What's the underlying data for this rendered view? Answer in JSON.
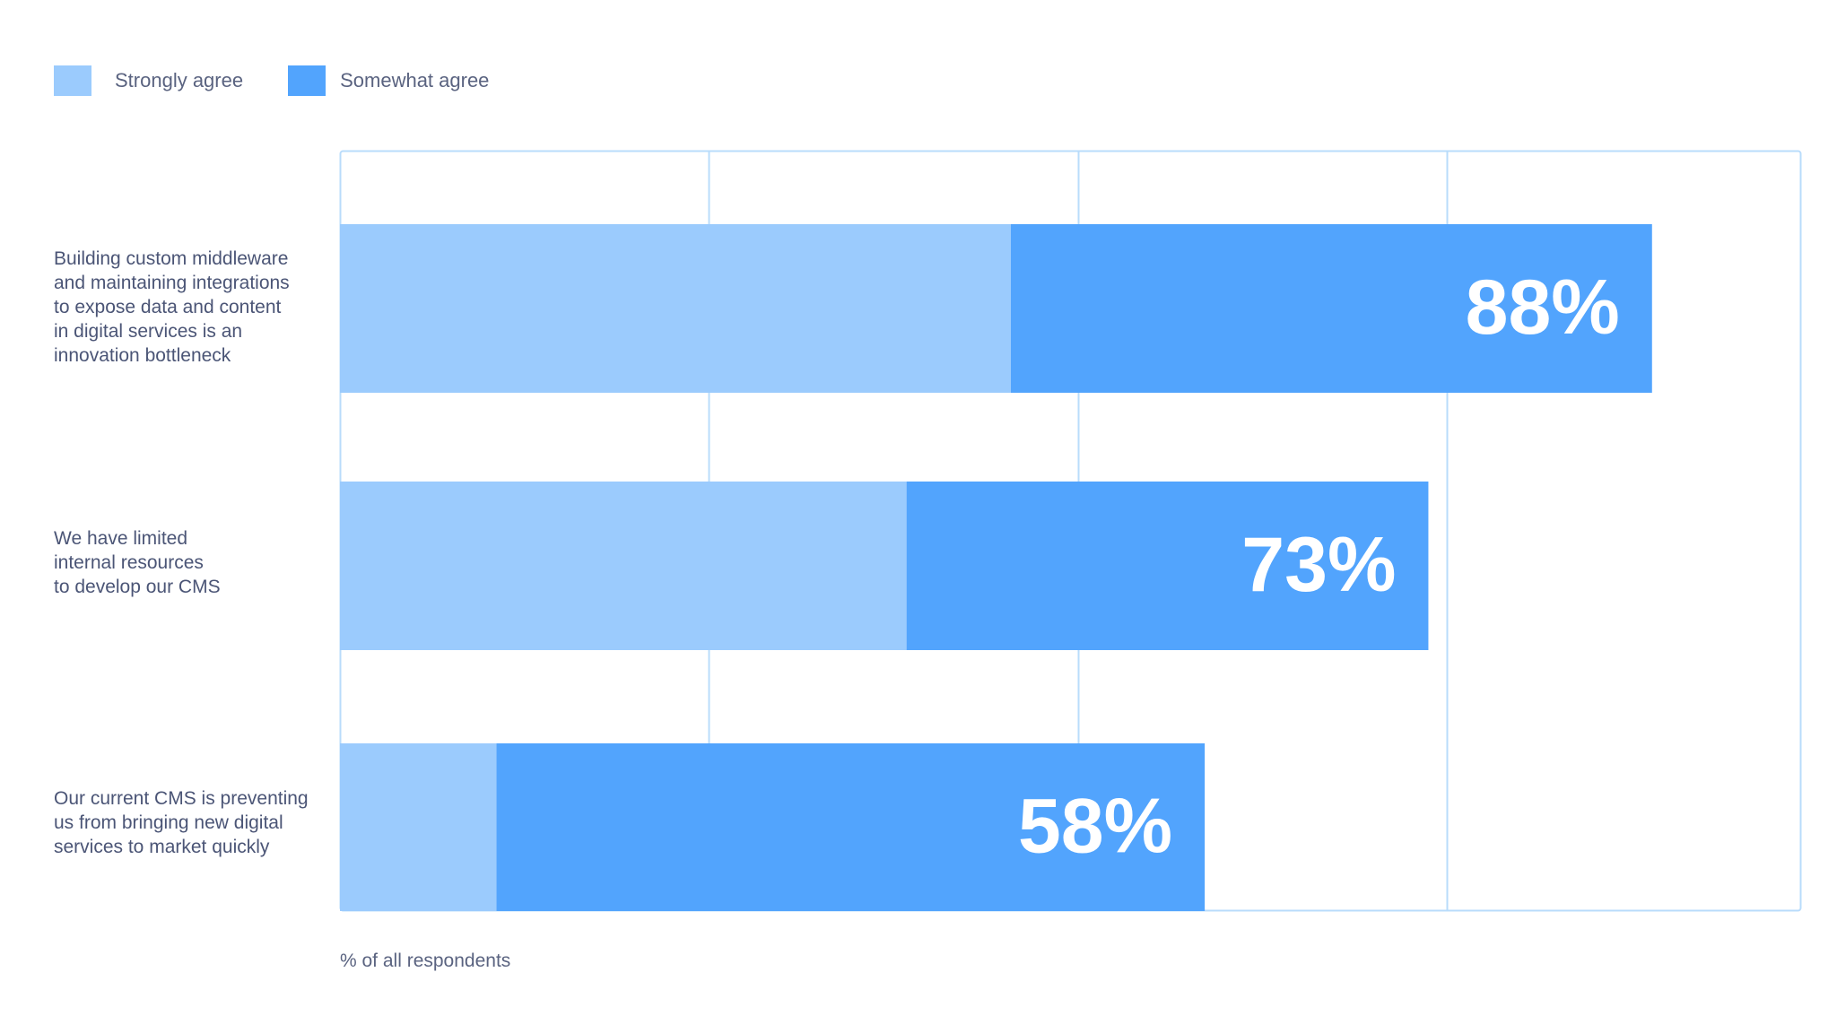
{
  "chart_data": {
    "type": "bar",
    "orientation": "horizontal",
    "stacked": true,
    "categories": [
      [
        "Building custom middleware",
        "and maintaining integrations",
        "to expose data and content",
        "in digital services is an",
        "innovation bottleneck"
      ],
      [
        "We have limited",
        "internal resources",
        "to develop our  CMS"
      ],
      [
        "Our current CMS is preventing",
        "us from bringing new digital",
        "services to market quickly"
      ]
    ],
    "series": [
      {
        "name": "Strongly agree",
        "color": "#9bcbfd",
        "values": [
          45,
          38,
          10.5
        ]
      },
      {
        "name": "Somewhat agree",
        "color": "#52a4fd",
        "values": [
          43,
          35,
          47.5
        ]
      }
    ],
    "totals_labels": [
      "88%",
      "73%",
      "58%"
    ],
    "xlim": [
      0,
      98
    ],
    "grid": true,
    "gridlines": [
      0,
      24.75,
      49.5,
      74.25,
      98
    ],
    "legend_position": "top-left",
    "xlabel": "% of all respondents"
  },
  "colors": {
    "grid": "#b9dcfb",
    "label_text": "#4b5576",
    "value_text": "#ffffff"
  }
}
